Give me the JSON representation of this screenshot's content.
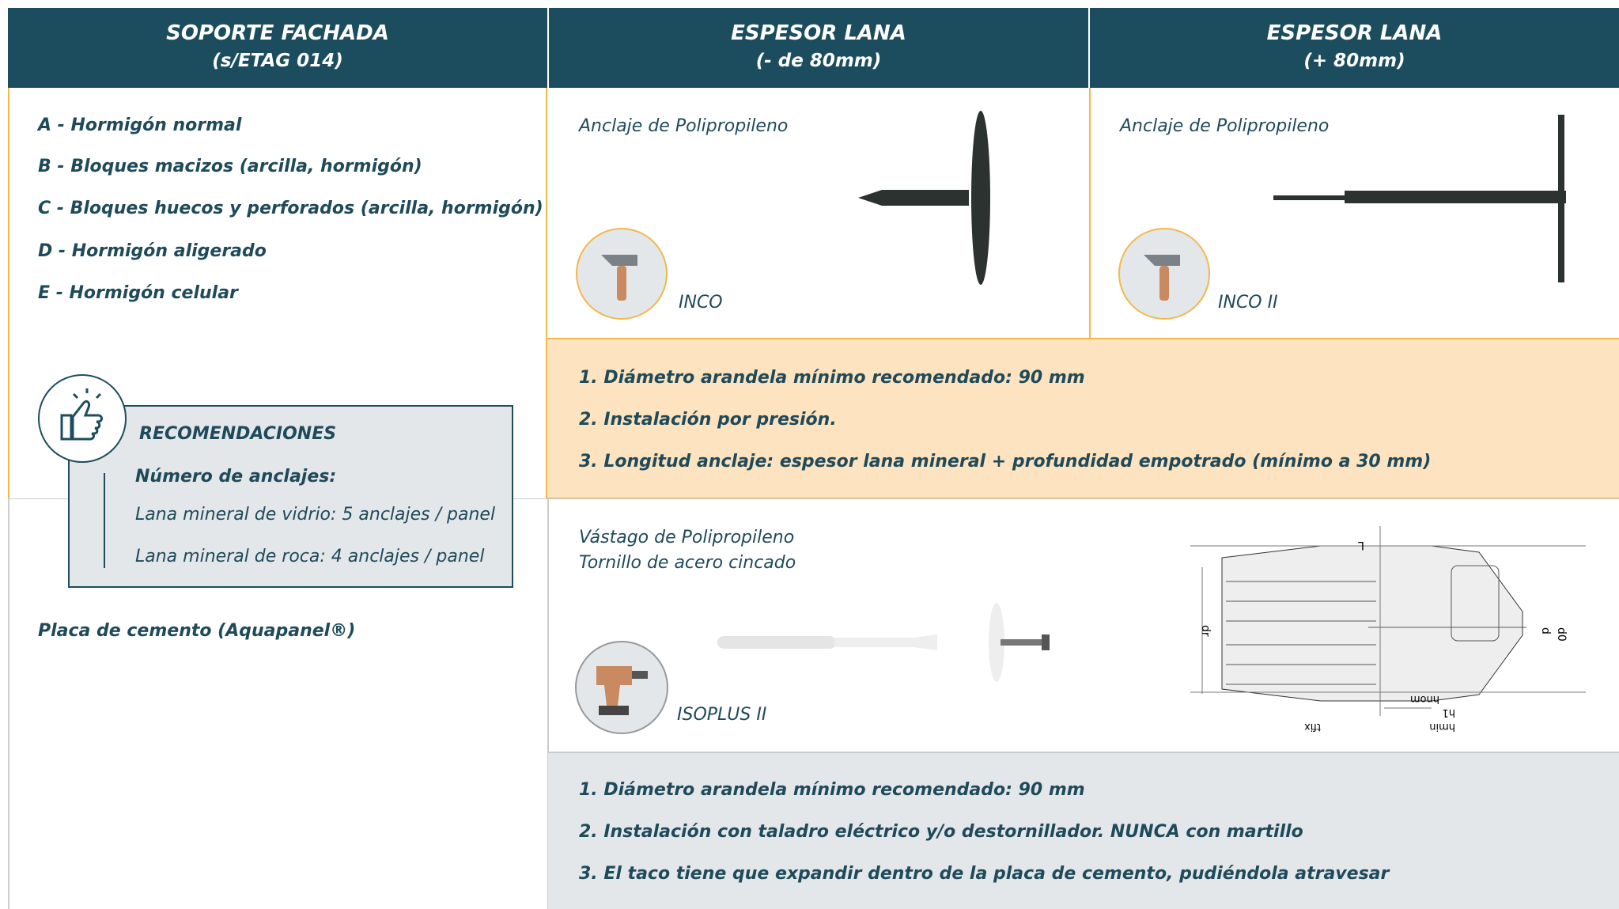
{
  "header": {
    "columns": [
      {
        "title": "SOPORTE FACHADA",
        "subtitle": "(s/ETAG 014)"
      },
      {
        "title": "ESPESOR LANA",
        "subtitle": "(- de 80mm)"
      },
      {
        "title": "ESPESOR LANA",
        "subtitle": "(+ 80mm)"
      }
    ]
  },
  "substrates": [
    "A - Hormigón normal",
    "B - Bloques macizos (arcilla, hormigón)",
    "C - Bloques huecos y perforados (arcilla, hormigón)",
    "D - Hormigón aligerado",
    "E - Hormigón celular"
  ],
  "recommendations": {
    "title": "RECOMENDACIONES",
    "subtitle": "Número de anclajes:",
    "items": [
      "Lana mineral de vidrio: 5 anclajes / panel",
      "Lana mineral de roca: 4 anclajes / panel"
    ]
  },
  "cement_board": "Placa de cemento (Aquapanel®)",
  "row1": {
    "products": [
      {
        "caption": "Anclaje de Polipropileno",
        "name": "INCO"
      },
      {
        "caption": "Anclaje de Polipropileno",
        "name": "INCO II"
      }
    ],
    "notes": [
      "1. Diámetro arandela mínimo recomendado: 90 mm",
      "2. Instalación por presión.",
      "3. Longitud anclaje: espesor lana mineral + profundidad empotrado (mínimo a 30 mm)"
    ]
  },
  "row2": {
    "caption": [
      "Vástago de Polipropileno",
      "Tornillo de acero cincado"
    ],
    "name": "ISOPLUS II",
    "diagram_labels": [
      "L",
      "dr",
      "d",
      "d0",
      "hnom",
      "h1",
      "tfix",
      "hmin"
    ],
    "notes": [
      "1. Diámetro arandela mínimo recomendado: 90 mm",
      "2. Instalación con taladro eléctrico y/o destornillador. NUNCA con martillo",
      "3. El taco tiene que expandir dentro de la placa de cemento, pudiéndola atravesar"
    ]
  }
}
